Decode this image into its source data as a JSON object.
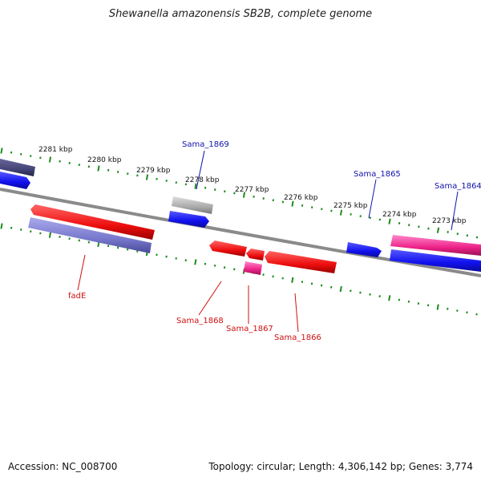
{
  "title": "Shewanella amazonensis SB2B, complete genome",
  "footer": {
    "accession": "Accession: NC_008700",
    "summary": "Topology: circular; Length: 4,306,142 bp; Genes: 3,774"
  },
  "colors": {
    "forward_strand_blue": "#1a1aee",
    "reverse_strand_red": "#ee1111",
    "pink": "#ee2288",
    "slate": "#7777cc",
    "dark_slate": "#444477",
    "gray": "#aaaaaa",
    "tick_green": "#228822",
    "backbone_gray": "#777777",
    "label_blue": "#1111aa",
    "label_red": "#cc1111"
  },
  "kbp_labels": [
    "2281 kbp",
    "2280 kbp",
    "2279 kbp",
    "2278 kbp",
    "2277 kbp",
    "2276 kbp",
    "2275 kbp",
    "2274 kbp",
    "2273 kbp"
  ],
  "gene_labels": {
    "sama_1869": "Sama_1869",
    "sama_1865": "Sama_1865",
    "sama_1864": "Sama_1864",
    "fade": "fadE",
    "sama_1868": "Sama_1868",
    "sama_1867": "Sama_1867",
    "sama_1866": "Sama_1866"
  }
}
